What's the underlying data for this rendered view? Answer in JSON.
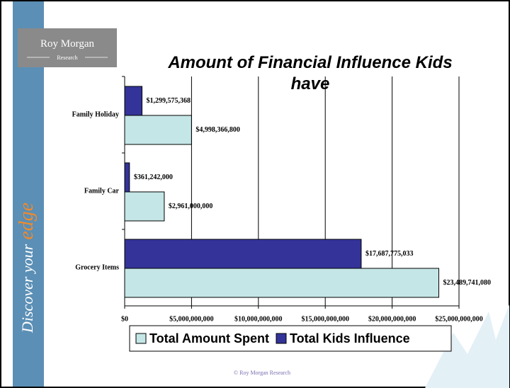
{
  "slide": {
    "logo": {
      "name": "Roy Morgan",
      "sub": "Research"
    },
    "sidebar": {
      "text": "Discover your",
      "highlight": "edge"
    },
    "footer": "© Roy Morgan Research"
  },
  "chart_data": {
    "type": "hbar",
    "title": "Amount of Financial Influence Kids have",
    "categories": [
      "Family Holiday",
      "Family Car",
      "Grocery Items"
    ],
    "series": [
      {
        "name": "Total Amount Spent",
        "color": "#c4e6e6",
        "values": [
          4998366800,
          2961000000,
          23489741080
        ],
        "value_labels": [
          "$4,998,366,800",
          "$2,961,000,000",
          "$23,489,741,080"
        ]
      },
      {
        "name": "Total Kids Influence",
        "color": "#333399",
        "values": [
          1299575368,
          361242000,
          17687775033
        ],
        "value_labels": [
          "$1,299,575,368",
          "$361,242,000",
          "$17,687,775,033"
        ]
      }
    ],
    "xlim": [
      0,
      25000000000
    ],
    "xticks": [
      {
        "value": 0,
        "label": "$0"
      },
      {
        "value": 5000000000,
        "label": "$5,000,000,000"
      },
      {
        "value": 10000000000,
        "label": "$10,000,000,000"
      },
      {
        "value": 15000000000,
        "label": "$15,000,000,000"
      },
      {
        "value": 20000000000,
        "label": "$20,000,000,000"
      },
      {
        "value": 25000000000,
        "label": "$25,000,000,000"
      }
    ],
    "grid": true,
    "legend": "bottom"
  }
}
